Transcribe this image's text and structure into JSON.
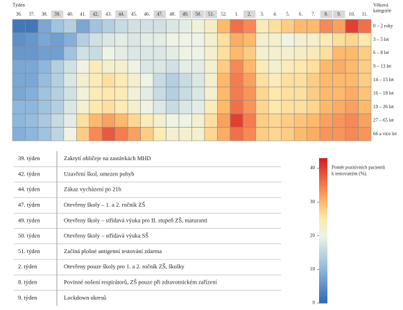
{
  "chart_data": {
    "type": "heatmap",
    "x_title": "Týden",
    "y_title": [
      "Věková",
      "kategorie"
    ],
    "categories": [
      "36.",
      "37.",
      "38.",
      "39.",
      "40.",
      "41.",
      "42.",
      "43.",
      "44.",
      "45.",
      "46.",
      "47.",
      "48.",
      "49.",
      "50.",
      "51.",
      "52.",
      "1.",
      "2.",
      "3.",
      "4.",
      "5.",
      "6.",
      "7.",
      "8.",
      "9.",
      "10.",
      "11."
    ],
    "highlight": [
      false,
      false,
      false,
      true,
      false,
      false,
      true,
      false,
      true,
      false,
      false,
      true,
      false,
      true,
      true,
      true,
      false,
      false,
      true,
      false,
      false,
      false,
      false,
      false,
      true,
      true,
      false,
      false
    ],
    "rows": [
      "0 – 2 roky",
      "3 – 5 let",
      "6 – 8 let",
      "9 – 13 let",
      "14 – 15 let",
      "16 – 18 let",
      "19 – 26 let",
      "27 – 65 let",
      "66 a více let"
    ],
    "values": [
      [
        2,
        2,
        8,
        12,
        14,
        8,
        12,
        14,
        16,
        17,
        17,
        17,
        18,
        19,
        21,
        23,
        30,
        36,
        34,
        24,
        26,
        28,
        30,
        30,
        34,
        32,
        40,
        36
      ],
      [
        5,
        6,
        8,
        7,
        9,
        14,
        17,
        18,
        19,
        18,
        19,
        19,
        20,
        20,
        20,
        22,
        26,
        31,
        30,
        22,
        22,
        20,
        22,
        22,
        24,
        26,
        27,
        25
      ],
      [
        6,
        6,
        7,
        7,
        12,
        17,
        16,
        20,
        19,
        18,
        18,
        18,
        19,
        20,
        20,
        22,
        26,
        30,
        28,
        22,
        22,
        22,
        23,
        24,
        26,
        30,
        30,
        28
      ],
      [
        8,
        8,
        10,
        14,
        17,
        20,
        24,
        22,
        22,
        20,
        18,
        18,
        17,
        19,
        19,
        22,
        28,
        34,
        30,
        24,
        22,
        24,
        25,
        26,
        30,
        31,
        30,
        28
      ],
      [
        8,
        8,
        11,
        14,
        18,
        22,
        24,
        26,
        24,
        22,
        20,
        16,
        14,
        16,
        18,
        22,
        30,
        35,
        32,
        26,
        24,
        26,
        26,
        28,
        30,
        30,
        30,
        28
      ],
      [
        8,
        9,
        12,
        14,
        17,
        21,
        24,
        25,
        24,
        21,
        19,
        16,
        14,
        16,
        18,
        22,
        30,
        35,
        33,
        27,
        25,
        26,
        26,
        28,
        30,
        30,
        31,
        29
      ],
      [
        10,
        10,
        12,
        14,
        18,
        22,
        25,
        26,
        24,
        22,
        20,
        18,
        16,
        18,
        19,
        24,
        30,
        36,
        33,
        27,
        25,
        26,
        26,
        27,
        30,
        31,
        32,
        30
      ],
      [
        10,
        11,
        13,
        16,
        19,
        26,
        30,
        32,
        30,
        27,
        24,
        22,
        20,
        20,
        22,
        26,
        32,
        40,
        35,
        28,
        27,
        28,
        29,
        30,
        32,
        33,
        34,
        32
      ],
      [
        9,
        10,
        12,
        15,
        20,
        28,
        34,
        38,
        35,
        32,
        28,
        24,
        22,
        22,
        22,
        27,
        31,
        36,
        34,
        28,
        27,
        28,
        30,
        31,
        33,
        33,
        34,
        33
      ]
    ],
    "colorscale": [
      [
        0,
        "#2f68b2"
      ],
      [
        10,
        "#8db7dc"
      ],
      [
        20,
        "#eef3e6"
      ],
      [
        25,
        "#fde9ab"
      ],
      [
        30,
        "#fdb96c"
      ],
      [
        35,
        "#f47d4f"
      ],
      [
        43,
        "#d61c1f"
      ]
    ],
    "colorbar": {
      "title": [
        "Poměr pozitivních pacientů",
        "k testovaným (%)."
      ],
      "lim": [
        0,
        43
      ],
      "ticks": [
        0,
        10,
        20,
        30,
        40
      ]
    }
  },
  "table": {
    "rows": [
      [
        "39. týden",
        "Zakrytí obličeje na zastávkách MHD"
      ],
      [
        "42. týden",
        "Uzavření škol, omezen pohyb"
      ],
      [
        "44. týden",
        "Zákaz vycházení po 21h"
      ],
      [
        "47. týden",
        "Otevřeny školy – 1. a 2. ročník ZŠ"
      ],
      [
        "49. týden",
        "Otevřeny školy – střídavá výuka pro II. stupeň ZŠ, maturanti"
      ],
      [
        "50. týden",
        "Otevřeny školy – střídavá výuka SŠ"
      ],
      [
        "51. týden",
        "Začíná plošné antigenní testování zdarma"
      ],
      [
        "2. týden",
        "Otevřeny pouze školy pro 1. a 2. ročník ZŠ, školky"
      ],
      [
        "8. týden",
        "Povinné nošení respirátorů, ZŠ pouze při zdravotnickém zařízení"
      ],
      [
        "9. týden",
        "Lockdown okresů"
      ]
    ]
  }
}
